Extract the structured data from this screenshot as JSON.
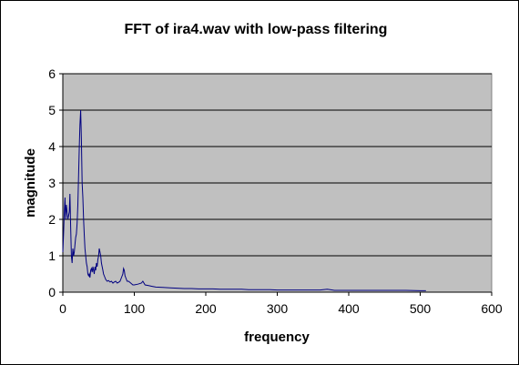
{
  "chart_data": {
    "type": "line",
    "title": "FFT of ira4.wav with low-pass filtering",
    "xlabel": "frequency",
    "ylabel": "magnitude",
    "xlim": [
      0,
      600
    ],
    "ylim": [
      0,
      6
    ],
    "x_ticks": [
      0,
      100,
      200,
      300,
      400,
      500,
      600
    ],
    "y_ticks": [
      0,
      1,
      2,
      3,
      4,
      5,
      6
    ],
    "grid": "horizontal",
    "colors": {
      "plot_bg": "#c0c0c0",
      "line": "#000080",
      "grid": "#000000"
    },
    "series": [
      {
        "name": "magnitude",
        "x": [
          0,
          1,
          2,
          3,
          4,
          5,
          6,
          7,
          8,
          9,
          10,
          11,
          12,
          13,
          14,
          15,
          16,
          17,
          18,
          19,
          20,
          21,
          22,
          23,
          24,
          25,
          26,
          27,
          28,
          29,
          30,
          31,
          32,
          33,
          34,
          35,
          36,
          37,
          38,
          39,
          40,
          41,
          42,
          43,
          44,
          45,
          46,
          47,
          48,
          49,
          50,
          51,
          52,
          53,
          54,
          55,
          56,
          57,
          58,
          59,
          60,
          62,
          64,
          66,
          68,
          70,
          72,
          74,
          76,
          78,
          80,
          82,
          84,
          85,
          86,
          87,
          88,
          90,
          92,
          95,
          98,
          100,
          105,
          110,
          112,
          115,
          120,
          125,
          130,
          140,
          150,
          160,
          170,
          180,
          190,
          200,
          210,
          220,
          230,
          240,
          250,
          260,
          270,
          280,
          290,
          300,
          320,
          340,
          360,
          370,
          380,
          400,
          420,
          440,
          460,
          480,
          500,
          508
        ],
        "values": [
          1.1,
          1.6,
          2.2,
          2.6,
          2.0,
          2.4,
          2.2,
          2.0,
          2.1,
          2.2,
          2.7,
          1.8,
          1.0,
          0.8,
          1.2,
          1.0,
          1.1,
          1.3,
          1.5,
          1.6,
          1.9,
          2.4,
          3.2,
          4.0,
          4.6,
          5.0,
          4.2,
          3.0,
          2.6,
          2.0,
          1.6,
          1.2,
          1.0,
          0.8,
          0.7,
          0.5,
          0.45,
          0.5,
          0.4,
          0.6,
          0.65,
          0.55,
          0.7,
          0.6,
          0.5,
          0.7,
          0.6,
          0.8,
          0.7,
          0.9,
          1.0,
          1.2,
          1.1,
          1.0,
          0.8,
          0.7,
          0.6,
          0.5,
          0.45,
          0.4,
          0.35,
          0.3,
          0.32,
          0.28,
          0.3,
          0.25,
          0.28,
          0.3,
          0.25,
          0.27,
          0.3,
          0.4,
          0.5,
          0.65,
          0.6,
          0.45,
          0.4,
          0.3,
          0.3,
          0.25,
          0.2,
          0.2,
          0.22,
          0.25,
          0.3,
          0.2,
          0.18,
          0.16,
          0.14,
          0.13,
          0.12,
          0.11,
          0.1,
          0.1,
          0.09,
          0.09,
          0.09,
          0.08,
          0.08,
          0.08,
          0.08,
          0.07,
          0.07,
          0.07,
          0.07,
          0.06,
          0.06,
          0.06,
          0.06,
          0.08,
          0.05,
          0.05,
          0.05,
          0.05,
          0.05,
          0.05,
          0.04,
          0.04
        ]
      }
    ]
  }
}
